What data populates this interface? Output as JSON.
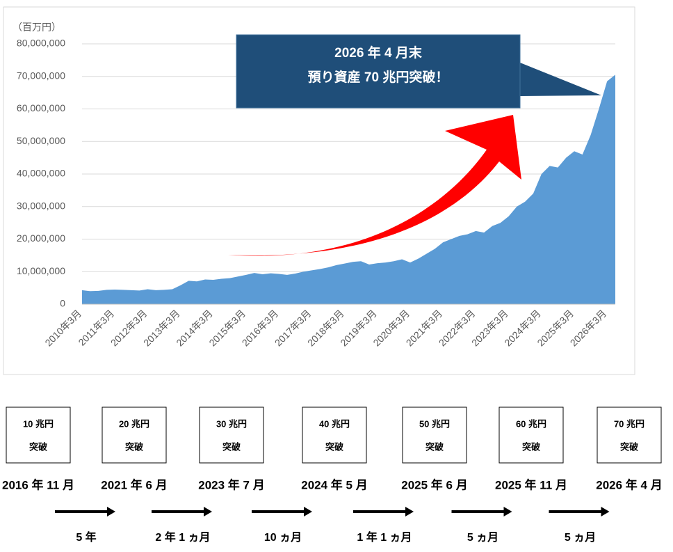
{
  "chart_data": {
    "type": "area",
    "y_unit": "（百万円）",
    "categories": [
      "2010年3月",
      null,
      null,
      null,
      "2011年3月",
      null,
      null,
      null,
      "2012年3月",
      null,
      null,
      null,
      "2013年3月",
      null,
      null,
      null,
      "2014年3月",
      null,
      null,
      null,
      "2015年3月",
      null,
      null,
      null,
      "2016年3月",
      null,
      null,
      null,
      "2017年3月",
      null,
      null,
      null,
      "2018年3月",
      null,
      null,
      null,
      "2019年3月",
      null,
      null,
      null,
      "2020年3月",
      null,
      null,
      null,
      "2021年3月",
      null,
      null,
      null,
      "2022年3月",
      null,
      null,
      null,
      "2023年3月",
      null,
      null,
      null,
      "2024年3月",
      null,
      null,
      null,
      "2025年3月",
      null,
      null,
      null,
      "2026年3月",
      null
    ],
    "series": [
      {
        "color": "#5b9bd5",
        "values": [
          4300000,
          4000000,
          4100000,
          4400000,
          4500000,
          4400000,
          4300000,
          4200000,
          4600000,
          4300000,
          4400000,
          4600000,
          5800000,
          7200000,
          7000000,
          7600000,
          7500000,
          7800000,
          8000000,
          8500000,
          9000000,
          9600000,
          9200000,
          9500000,
          9300000,
          9000000,
          9400000,
          10000000,
          10400000,
          10800000,
          11300000,
          12000000,
          12500000,
          13000000,
          13200000,
          12200000,
          12600000,
          12800000,
          13200000,
          13800000,
          12800000,
          14000000,
          15500000,
          17000000,
          19000000,
          20000000,
          21000000,
          21500000,
          22500000,
          22000000,
          24000000,
          25000000,
          27000000,
          30000000,
          31500000,
          34000000,
          40000000,
          42500000,
          42000000,
          45000000,
          47000000,
          46000000,
          52000000,
          60000000,
          68500000,
          70500000
        ]
      }
    ],
    "ylim": [
      0,
      80000000
    ],
    "yticks": [
      0,
      {
        "value": 10000000,
        "label": "10,000,000"
      },
      {
        "value": 20000000,
        "label": "20,000,000"
      },
      {
        "value": 30000000,
        "label": "30,000,000"
      },
      {
        "value": 40000000,
        "label": "40,000,000"
      },
      {
        "value": 50000000,
        "label": "50,000,000"
      },
      {
        "value": 60000000,
        "label": "60,000,000"
      },
      {
        "value": 70000000,
        "label": "70,000,000"
      },
      {
        "value": 80000000,
        "label": "80,000,000"
      }
    ],
    "grid": true,
    "callout": [
      "2026 年 4 月末",
      "預り資産 70 兆円突破！"
    ]
  },
  "timeline": {
    "milestones": [
      {
        "amount": "10 兆円",
        "status": "突破",
        "date": "2016 年 11 月"
      },
      {
        "amount": "20 兆円",
        "status": "突破",
        "date": "2021 年 6 月"
      },
      {
        "amount": "30 兆円",
        "status": "突破",
        "date": "2023 年 7 月"
      },
      {
        "amount": "40 兆円",
        "status": "突破",
        "date": "2024 年 5 月"
      },
      {
        "amount": "50 兆円",
        "status": "突破",
        "date": "2025 年 6 月"
      },
      {
        "amount": "60 兆円",
        "status": "突破",
        "date": "2025 年 11 月"
      },
      {
        "amount": "70 兆円",
        "status": "突破",
        "date": "2026 年 4 月"
      }
    ],
    "intervals": [
      "5 年",
      "2 年 1 ヵ月",
      "10 ヵ月",
      "1 年 1 ヵ月",
      "5 ヵ月",
      "5 ヵ月"
    ]
  }
}
